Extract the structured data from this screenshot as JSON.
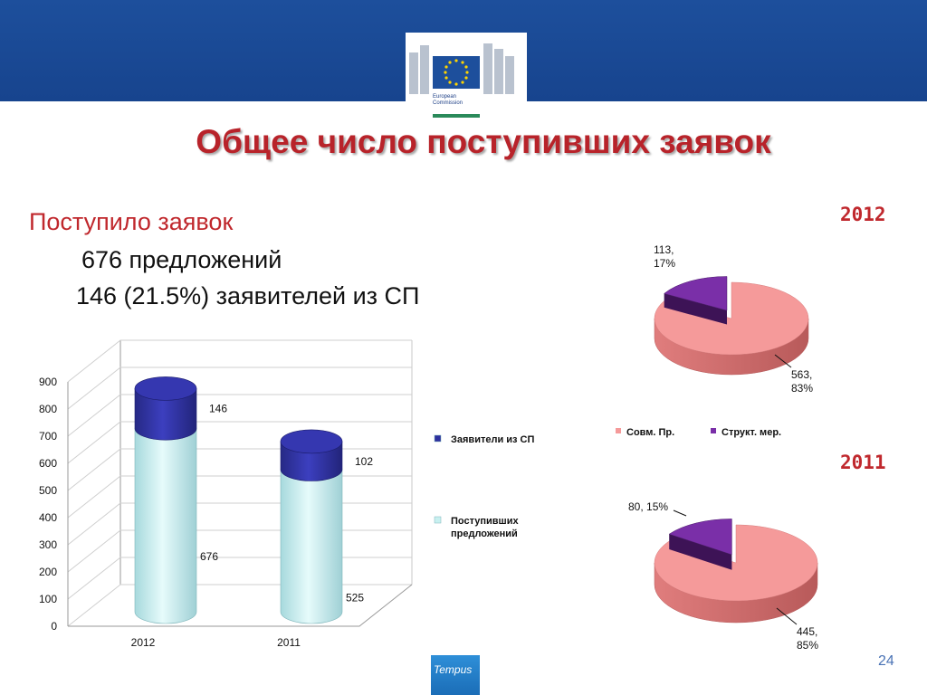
{
  "logo": {
    "text": "European\nCommission"
  },
  "title": "Общее число поступивших заявок",
  "intro": {
    "line1": "Поступило заявок",
    "line2": "676 предложений",
    "line3": "146 (21.5%) заявителей из СП"
  },
  "year_labels": {
    "top": "2012",
    "bottom": "2011"
  },
  "page_number": "24",
  "footer_logo": "Tempus",
  "colors": {
    "title": "#b8232a",
    "bar_base": "#c8f0f0",
    "bar_top": "#2d2f9e",
    "pie_main": "#f59a9a",
    "pie_small": "#7a2fa8",
    "band": "#1a4a95"
  },
  "chart_data": [
    {
      "type": "bar",
      "stacked": true,
      "title": "",
      "categories": [
        "2012",
        "2011"
      ],
      "series": [
        {
          "name": "Поступивших предложений",
          "values": [
            676,
            525
          ]
        },
        {
          "name": "Заявители из СП",
          "values": [
            146,
            102
          ]
        }
      ],
      "yticks": [
        "0",
        "100",
        "200",
        "300",
        "400",
        "500",
        "600",
        "700",
        "800",
        "900"
      ],
      "ylim": [
        0,
        900
      ],
      "grid": true,
      "legend": [
        "Заявители из СП",
        "Поступивших предложений"
      ],
      "legend_position": "right"
    },
    {
      "type": "pie",
      "title": "2012",
      "slices": [
        {
          "name": "Совм. Пр.",
          "value": 563,
          "percent": "83%",
          "label": "563, 83%"
        },
        {
          "name": "Структ. мер.",
          "value": 113,
          "percent": "17%",
          "label": "113, 17%"
        }
      ],
      "legend": [
        "Совм. Пр.",
        "Структ. мер."
      ],
      "legend_position": "bottom"
    },
    {
      "type": "pie",
      "title": "2011",
      "slices": [
        {
          "name": "Совм. Пр.",
          "value": 445,
          "percent": "85%",
          "label": "445, 85%"
        },
        {
          "name": "Структ. мер.",
          "value": 80,
          "percent": "15%",
          "label": "80, 15%"
        }
      ]
    }
  ]
}
